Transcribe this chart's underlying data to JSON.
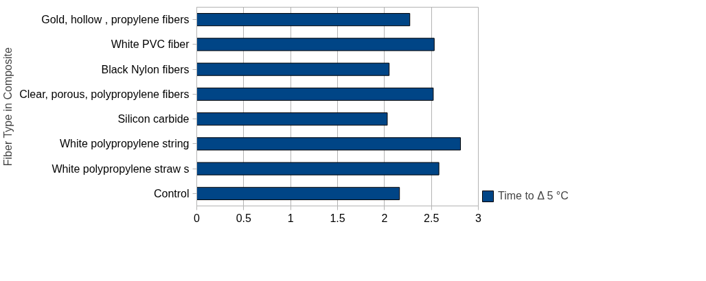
{
  "chart_data": {
    "type": "bar",
    "orientation": "horizontal",
    "ylabel": "Fiber Type in Composite",
    "categories": [
      "Gold, hollow , propylene fibers",
      "White PVC fiber",
      "Black Nylon fibers",
      "Clear, porous, polypropylene fibers",
      "Silicon carbide",
      "White polypropylene string",
      "White polypropylene straw s",
      "Control"
    ],
    "series": [
      {
        "name": "Time to Δ 5 °C",
        "color": "#004586",
        "values": [
          2.27,
          2.53,
          2.05,
          2.52,
          2.03,
          2.81,
          2.58,
          2.16
        ]
      }
    ],
    "xlim": [
      0,
      3
    ],
    "xticks": [
      0,
      0.5,
      1,
      1.5,
      2,
      2.5,
      3
    ],
    "grid": "x",
    "legend": "bottom right"
  }
}
